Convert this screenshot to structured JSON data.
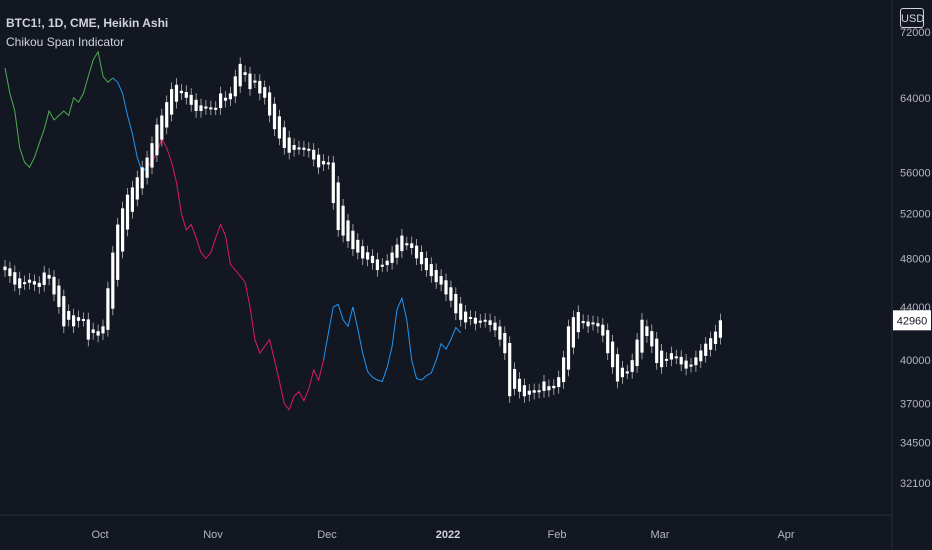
{
  "header": {
    "symbol_line": "BTC1!, 1D, CME, Heikin Ashi",
    "indicator": "Chikou Span Indicator",
    "currency": "USD"
  },
  "colors": {
    "background": "#131722",
    "candle": "#ffffff",
    "span_bull": "#26a69a",
    "span_green": "#4caf50",
    "span_blue": "#2196f3",
    "span_red": "#d81b60",
    "axis_text": "#b2b5be"
  },
  "chart_data": {
    "type": "candlestick",
    "y_axis_ticks": [
      34500,
      37000,
      40000,
      44000,
      48000,
      52000,
      56000,
      64000,
      72000,
      32100
    ],
    "y_tick_labels": [
      "34500",
      "37000",
      "40000",
      "44000",
      "48000",
      "52000",
      "56000",
      "64000",
      "72000",
      "32100"
    ],
    "current_price": "42960",
    "x_tick_labels": [
      {
        "label": "Oct",
        "bold": false
      },
      {
        "label": "Nov",
        "bold": false
      },
      {
        "label": "Dec",
        "bold": false
      },
      {
        "label": "2022",
        "bold": true
      },
      {
        "label": "Feb",
        "bold": false
      },
      {
        "label": "Mar",
        "bold": false
      },
      {
        "label": "Apr",
        "bold": false
      }
    ],
    "candles_close": [
      47000,
      46500,
      45800,
      45500,
      46000,
      46200,
      45800,
      45600,
      46800,
      46600,
      45000,
      44000,
      42500,
      43000,
      42500,
      43200,
      43000,
      41500,
      42000,
      41800,
      42500,
      45500,
      48500,
      51000,
      52500,
      53800,
      54500,
      55500,
      56500,
      57500,
      59000,
      61000,
      62000,
      63500,
      65000,
      65500,
      64800,
      64000,
      63200,
      62500,
      62500,
      63000,
      62800,
      62800,
      64500,
      64000,
      64500,
      66500,
      68000,
      67000,
      65000,
      66000,
      64500,
      64000,
      62000,
      60500,
      59500,
      58500,
      58000,
      58300,
      58500,
      58300,
      58200,
      57300,
      56500,
      56800,
      57000,
      53000,
      50500,
      50000,
      49500,
      48800,
      48500,
      48000,
      47900,
      47600,
      47000,
      47400,
      47800,
      48500,
      49200,
      50000,
      49300,
      48900,
      48000,
      47500,
      47000,
      46500,
      46000,
      45800,
      45000,
      44500,
      43500,
      43000,
      42800,
      43100,
      42700,
      42900,
      43000,
      42600,
      42200,
      41500,
      40500,
      37500,
      38000,
      37800,
      37500,
      37600,
      37900,
      37900,
      38500,
      37900,
      38200,
      38800,
      40200,
      42500,
      43200,
      43600,
      42900,
      42500,
      42800,
      42500,
      41800,
      40500,
      39500,
      38500,
      38800,
      39200,
      40000,
      41500,
      43000,
      42500,
      41000,
      39800,
      39500,
      40000,
      40500,
      40200,
      39700,
      39400,
      39600,
      40200,
      40700,
      41200,
      41600,
      42100,
      42960
    ],
    "chikou_span": [
      {
        "color": "green",
        "values": [
          67500,
          64500,
          62500,
          58500,
          57000,
          56500,
          57500,
          59000,
          60500,
          62500,
          61500,
          62000,
          62500,
          62000,
          64000,
          63500,
          64500,
          66500,
          68500,
          69500,
          66500,
          65800,
          66300
        ]
      },
      {
        "color": "blue",
        "values": [
          66300,
          65800,
          64500,
          62000,
          60000,
          57500,
          56000,
          56600
        ]
      },
      {
        "color": "red",
        "values": [
          56600,
          57000,
          58000,
          59500,
          58500,
          57000,
          55000,
          52000,
          50500,
          51000,
          49800,
          48500,
          48000,
          48500,
          49800,
          51000,
          50000,
          47500,
          47000,
          46500,
          46000,
          44000,
          41500,
          40500,
          41000,
          41500,
          40000,
          38500,
          37000,
          36600,
          37500,
          37800,
          37200,
          38000,
          39300,
          38600,
          40000
        ]
      },
      {
        "color": "blue",
        "values": [
          40000,
          42000,
          44000,
          44200,
          43000,
          42500,
          44000,
          42300,
          40500,
          39200,
          38800,
          38600,
          38500,
          39500,
          41000,
          43800,
          44700,
          43000,
          40000,
          38700,
          38600,
          38900,
          39100,
          40000,
          41200,
          40800,
          41500,
          42400,
          42000
        ]
      }
    ]
  }
}
